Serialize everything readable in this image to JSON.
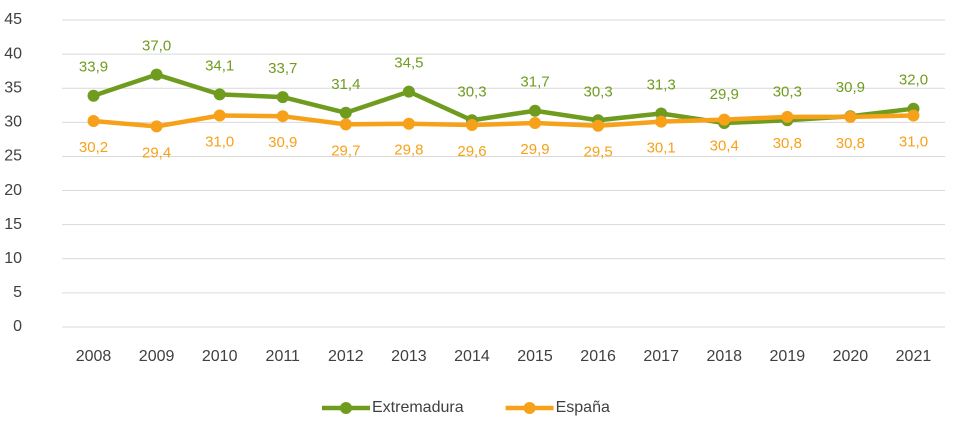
{
  "chart_data": {
    "type": "line",
    "categories": [
      "2008",
      "2009",
      "2010",
      "2011",
      "2012",
      "2013",
      "2014",
      "2015",
      "2016",
      "2017",
      "2018",
      "2019",
      "2020",
      "2021"
    ],
    "series": [
      {
        "name": "Extremadura",
        "color": "#6f9c1f",
        "values": [
          33.9,
          37.0,
          34.1,
          33.7,
          31.4,
          34.5,
          30.3,
          31.7,
          30.3,
          31.3,
          29.9,
          30.3,
          30.9,
          32.0
        ],
        "value_labels": [
          "33,9",
          "37,0",
          "34,1",
          "33,7",
          "31,4",
          "34,5",
          "30,3",
          "31,7",
          "30,3",
          "31,3",
          "29,9",
          "30,3",
          "30,9",
          "32,0"
        ]
      },
      {
        "name": "España",
        "color": "#f7a11a",
        "values": [
          30.2,
          29.4,
          31.0,
          30.9,
          29.7,
          29.8,
          29.6,
          29.9,
          29.5,
          30.1,
          30.4,
          30.8,
          30.8,
          31.0
        ],
        "value_labels": [
          "30,2",
          "29,4",
          "31,0",
          "30,9",
          "29,7",
          "29,8",
          "29,6",
          "29,9",
          "29,5",
          "30,1",
          "30,4",
          "30,8",
          "30,8",
          "31,0"
        ]
      }
    ],
    "ylim": [
      0,
      45
    ],
    "yticks": [
      0,
      5,
      10,
      15,
      20,
      25,
      30,
      35,
      40,
      45
    ],
    "grid": true,
    "legend": "bottom"
  }
}
